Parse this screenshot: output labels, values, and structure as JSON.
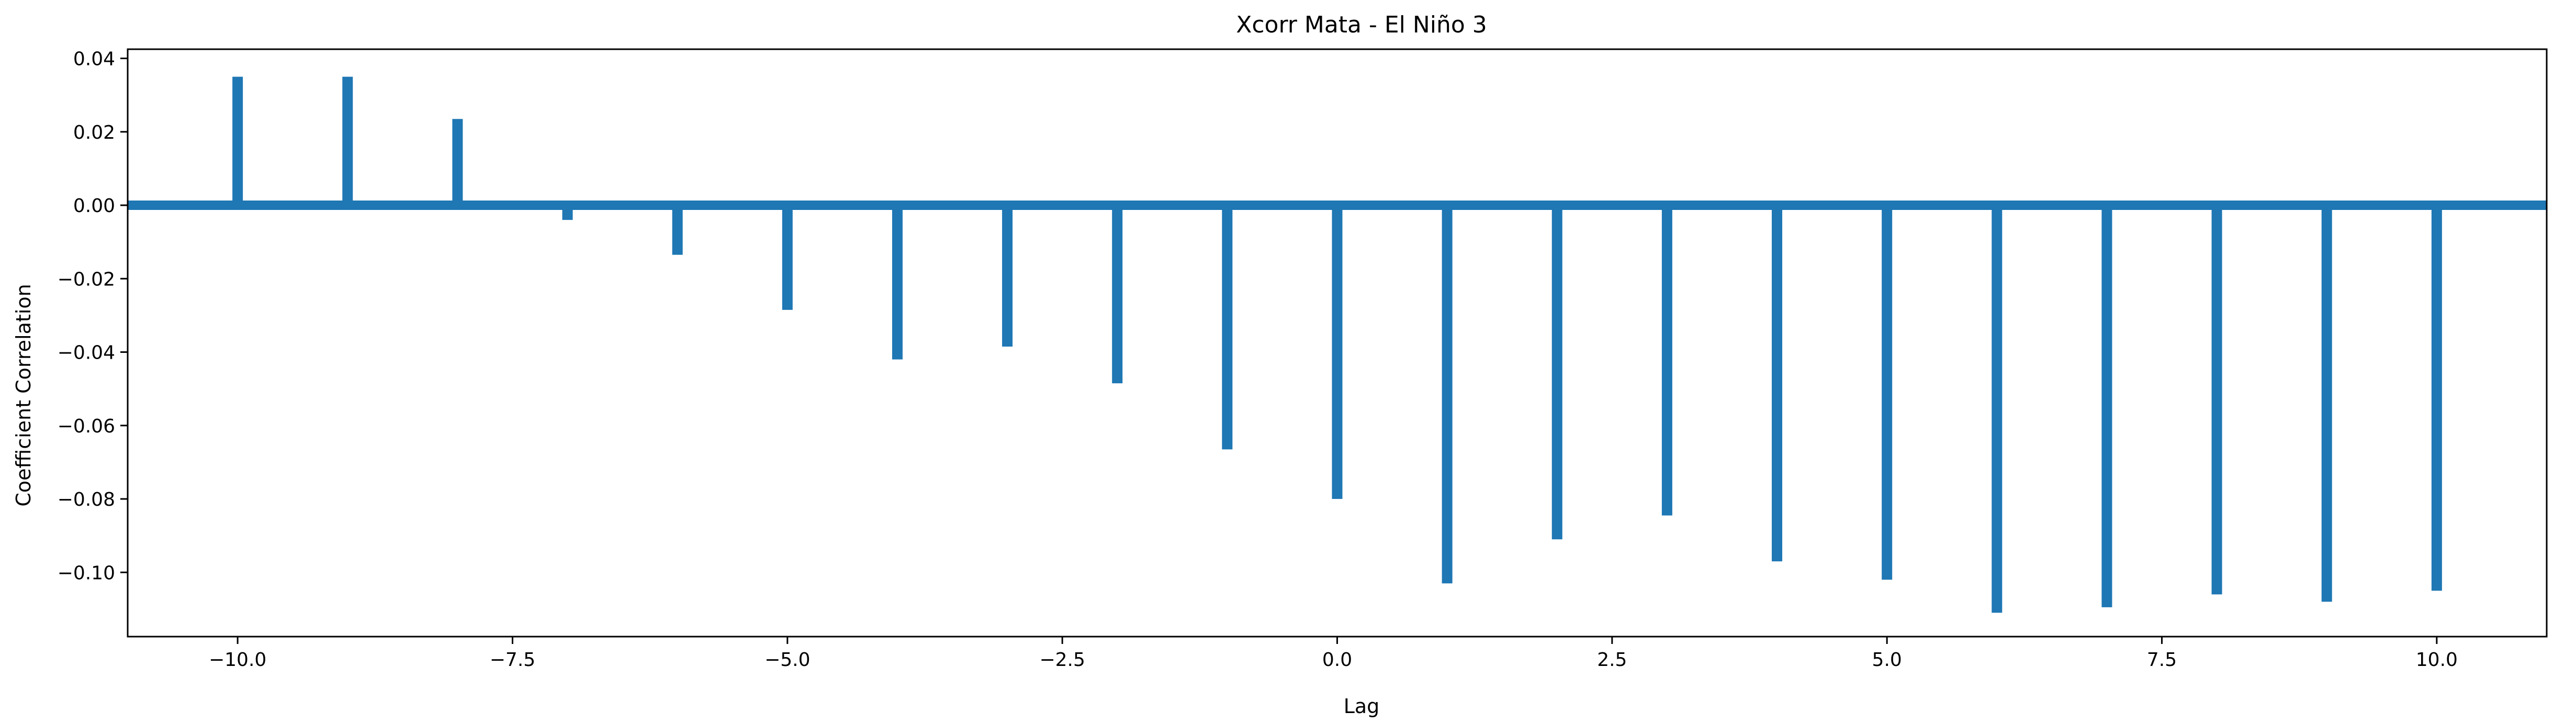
{
  "chart_data": {
    "type": "bar",
    "title": "Xcorr Mata - El Niño 3",
    "xlabel": "Lag",
    "ylabel": "Coefficient Correlation",
    "xlim": [
      -11,
      11
    ],
    "ylim": [
      -0.1175,
      0.0425
    ],
    "grid": false,
    "bar_color": "#1f77b4",
    "baseline": 0.0,
    "x": [
      -10,
      -9,
      -8,
      -7,
      -6,
      -5,
      -4,
      -3,
      -2,
      -1,
      0,
      1,
      2,
      3,
      4,
      5,
      6,
      7,
      8,
      9,
      10
    ],
    "values": [
      0.035,
      0.035,
      0.0235,
      -0.004,
      -0.0135,
      -0.0285,
      -0.042,
      -0.0385,
      -0.0485,
      -0.0665,
      -0.08,
      -0.103,
      -0.091,
      -0.0845,
      -0.097,
      -0.102,
      -0.111,
      -0.1095,
      -0.106,
      -0.108,
      -0.105
    ],
    "xticks": [
      -10,
      -7.5,
      -5,
      -2.5,
      0,
      2.5,
      5,
      7.5,
      10
    ],
    "xtick_labels": [
      "−10.0",
      "−7.5",
      "−5.0",
      "−2.5",
      "0.0",
      "2.5",
      "5.0",
      "7.5",
      "10.0"
    ],
    "yticks": [
      0.04,
      0.02,
      0.0,
      -0.02,
      -0.04,
      -0.06,
      -0.08,
      -0.1
    ],
    "ytick_labels": [
      "0.04",
      "0.02",
      "0.00",
      "−0.02",
      "−0.04",
      "−0.06",
      "−0.08",
      "−0.10"
    ]
  }
}
